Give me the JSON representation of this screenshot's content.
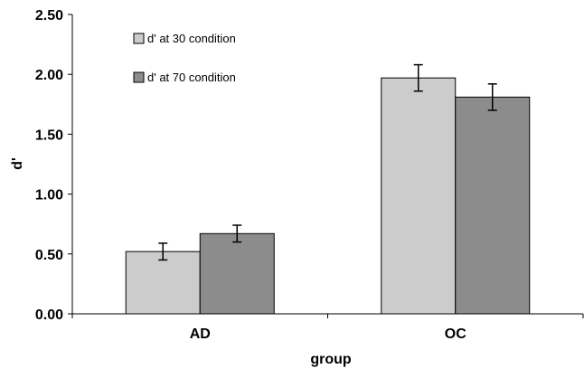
{
  "chart_data": {
    "type": "bar",
    "xlabel": "group",
    "ylabel": "d'",
    "ylim": [
      0,
      2.5
    ],
    "ytick_labels": [
      "0.00",
      "0.50",
      "1.00",
      "1.50",
      "2.00",
      "2.50"
    ],
    "categories": [
      "AD",
      "OC"
    ],
    "grid": false,
    "legend_position": "top-left",
    "series": [
      {
        "name": "d' at 30 condition",
        "color": "#cccccc",
        "values": [
          0.52,
          1.97
        ],
        "errors": [
          0.07,
          0.11
        ]
      },
      {
        "name": "d' at 70 condition",
        "color": "#8c8c8c",
        "values": [
          0.67,
          1.81
        ],
        "errors": [
          0.07,
          0.11
        ]
      }
    ]
  }
}
